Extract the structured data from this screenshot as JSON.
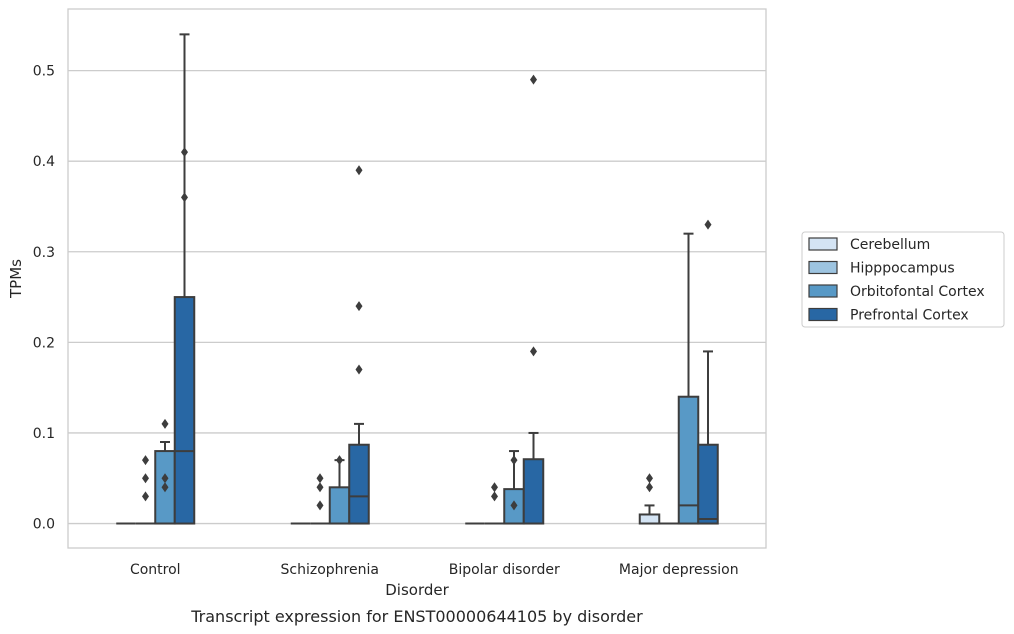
{
  "chart_data": {
    "type": "box",
    "title": "",
    "caption": "Transcript expression for ENST00000644105 by disorder",
    "xlabel": "Disorder",
    "ylabel": "TPMs",
    "ylim": [
      -0.027,
      0.568
    ],
    "yticks": [
      0.0,
      0.1,
      0.2,
      0.3,
      0.4,
      0.5
    ],
    "ytick_labels": [
      "0.0",
      "0.1",
      "0.2",
      "0.3",
      "0.4",
      "0.5"
    ],
    "grid": "horizontal",
    "legend_position": "right",
    "categories": [
      "Control",
      "Schizophrenia",
      "Bipolar disorder",
      "Major depression"
    ],
    "series": [
      {
        "name": "Cerebellum",
        "color": "#d4e4f4",
        "boxes": [
          {
            "q1": 0,
            "median": 0,
            "q3": 0,
            "whisker_low": 0,
            "whisker_high": 0,
            "outliers": []
          },
          {
            "q1": 0,
            "median": 0,
            "q3": 0,
            "whisker_low": 0,
            "whisker_high": 0,
            "outliers": []
          },
          {
            "q1": 0,
            "median": 0,
            "q3": 0,
            "whisker_low": 0,
            "whisker_high": 0,
            "outliers": []
          },
          {
            "q1": 0,
            "median": 0,
            "q3": 0.01,
            "whisker_low": 0,
            "whisker_high": 0.02,
            "outliers": [
              0.04,
              0.05
            ]
          }
        ]
      },
      {
        "name": "Hipppocampus",
        "color": "#9dc4e0",
        "boxes": [
          {
            "q1": 0,
            "median": 0,
            "q3": 0,
            "whisker_low": 0,
            "whisker_high": 0,
            "outliers": [
              0.03,
              0.05,
              0.07
            ]
          },
          {
            "q1": 0,
            "median": 0,
            "q3": 0,
            "whisker_low": 0,
            "whisker_high": 0,
            "outliers": [
              0.02,
              0.04,
              0.05
            ]
          },
          {
            "q1": 0,
            "median": 0,
            "q3": 0,
            "whisker_low": 0,
            "whisker_high": 0,
            "outliers": [
              0.03,
              0.04
            ]
          },
          {
            "q1": 0,
            "median": 0,
            "q3": 0,
            "whisker_low": 0,
            "whisker_high": 0,
            "outliers": []
          }
        ]
      },
      {
        "name": "Orbitofontal Cortex",
        "color": "#5899c6",
        "boxes": [
          {
            "q1": 0,
            "median": 0,
            "q3": 0.08,
            "whisker_low": 0,
            "whisker_high": 0.09,
            "outliers": [
              0.04,
              0.05,
              0.11
            ]
          },
          {
            "q1": 0,
            "median": 0,
            "q3": 0.04,
            "whisker_low": 0,
            "whisker_high": 0.07,
            "outliers": [
              0.07
            ]
          },
          {
            "q1": 0,
            "median": 0,
            "q3": 0.038,
            "whisker_low": 0,
            "whisker_high": 0.08,
            "outliers": [
              0.02,
              0.07
            ]
          },
          {
            "q1": 0,
            "median": 0.02,
            "q3": 0.14,
            "whisker_low": 0,
            "whisker_high": 0.32,
            "outliers": []
          }
        ]
      },
      {
        "name": "Prefrontal Cortex",
        "color": "#2867a4",
        "boxes": [
          {
            "q1": 0,
            "median": 0.08,
            "q3": 0.25,
            "whisker_low": 0,
            "whisker_high": 0.54,
            "outliers": [
              0.36,
              0.41
            ]
          },
          {
            "q1": 0,
            "median": 0.03,
            "q3": 0.087,
            "whisker_low": 0,
            "whisker_high": 0.11,
            "outliers": [
              0.17,
              0.24,
              0.39
            ]
          },
          {
            "q1": 0,
            "median": 0,
            "q3": 0.071,
            "whisker_low": 0,
            "whisker_high": 0.1,
            "outliers": [
              0.19,
              0.49
            ]
          },
          {
            "q1": 0,
            "median": 0.005,
            "q3": 0.087,
            "whisker_low": 0,
            "whisker_high": 0.19,
            "outliers": [
              0.33
            ]
          }
        ]
      }
    ]
  }
}
